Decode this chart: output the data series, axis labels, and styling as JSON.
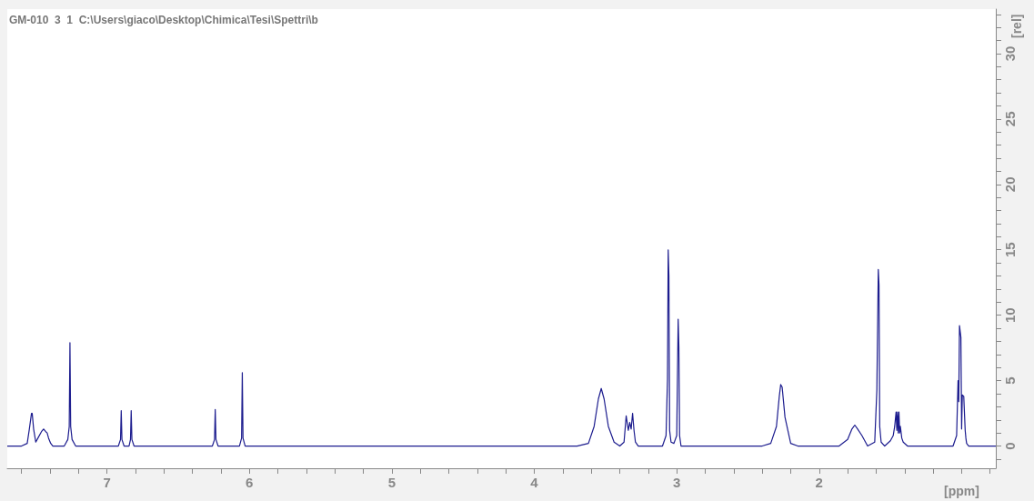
{
  "chart_data": {
    "type": "line",
    "title": "GM-010  3  1  C:\\Users\\giaco\\Desktop\\Chimica\\Tesi\\Spettri\\b",
    "xlabel": "[ppm]",
    "ylabel": "[rel]",
    "xlim": [
      7.7,
      0.76
    ],
    "xticks": [
      7,
      6,
      5,
      4,
      3,
      2,
      {
        "value": 1,
        "label": null
      }
    ],
    "ylim": [
      -1.7,
      33.4
    ],
    "yticks": [
      0,
      5,
      10,
      15,
      20,
      25,
      30
    ],
    "grid": false,
    "marker": "none",
    "line_style": "solid",
    "series": [
      {
        "color": "#1c1c8e",
        "x": [
          7.7,
          7.6,
          7.56,
          7.545,
          7.53,
          7.525,
          7.515,
          7.5,
          7.485,
          7.46,
          7.445,
          7.43,
          7.42,
          7.41,
          7.395,
          7.38,
          7.3,
          7.275,
          7.265,
          7.26,
          7.255,
          7.245,
          7.22,
          6.92,
          6.905,
          6.9,
          6.895,
          6.88,
          6.845,
          6.835,
          6.83,
          6.825,
          6.81,
          6.26,
          6.245,
          6.24,
          6.235,
          6.22,
          6.07,
          6.055,
          6.05,
          6.045,
          6.03,
          3.7,
          3.62,
          3.58,
          3.55,
          3.53,
          3.51,
          3.48,
          3.44,
          3.4,
          3.37,
          3.355,
          3.34,
          3.33,
          3.32,
          3.31,
          3.3,
          3.29,
          3.27,
          3.1,
          3.075,
          3.065,
          3.06,
          3.055,
          3.05,
          3.04,
          3.02,
          3.0,
          2.99,
          2.985,
          2.98,
          2.97,
          2.94,
          2.4,
          2.34,
          2.3,
          2.28,
          2.27,
          2.26,
          2.24,
          2.2,
          2.15,
          1.86,
          1.8,
          1.77,
          1.75,
          1.73,
          1.7,
          1.66,
          1.61,
          1.595,
          1.585,
          1.58,
          1.575,
          1.565,
          1.54,
          1.5,
          1.48,
          1.47,
          1.46,
          1.455,
          1.45,
          1.445,
          1.44,
          1.435,
          1.43,
          1.42,
          1.41,
          1.38,
          1.06,
          1.035,
          1.025,
          1.02,
          1.015,
          1.005,
          1.0,
          0.995,
          0.985,
          0.975,
          0.97,
          0.965,
          0.95,
          0.76
        ],
        "values": [
          0,
          0,
          0.2,
          1.3,
          2.5,
          2.5,
          1.3,
          0.3,
          0.6,
          1.1,
          1.3,
          1.1,
          1.0,
          0.6,
          0.2,
          0,
          0,
          0.5,
          1.5,
          7.9,
          1.5,
          0.5,
          0,
          0,
          0.5,
          2.7,
          0.5,
          0,
          0,
          0.5,
          2.7,
          0.5,
          0,
          0,
          0.5,
          2.8,
          0.5,
          0,
          0,
          0.6,
          5.6,
          0.6,
          0,
          0,
          0.2,
          1.5,
          3.6,
          4.4,
          3.6,
          1.5,
          0.3,
          0,
          0.3,
          2.3,
          1.2,
          1.8,
          1.3,
          2.5,
          1.2,
          0.3,
          0,
          0,
          0.8,
          5.1,
          15.0,
          13.0,
          1.2,
          0.3,
          0.2,
          0.8,
          9.7,
          7.6,
          0.8,
          0,
          0,
          0,
          0.2,
          1.5,
          3.8,
          4.7,
          4.5,
          2.2,
          0.2,
          0,
          0,
          0.5,
          1.3,
          1.6,
          1.3,
          0.8,
          0,
          0.3,
          4.3,
          13.5,
          12.3,
          1.5,
          0.3,
          0,
          0.4,
          0.8,
          1.5,
          2.6,
          1.2,
          2.6,
          1.0,
          2.6,
          1.0,
          1.5,
          0.6,
          0.3,
          0,
          0,
          0.8,
          5.0,
          3.4,
          9.2,
          8.3,
          1.3,
          3.9,
          3.8,
          1.2,
          0.6,
          0.2,
          0,
          0
        ]
      }
    ]
  }
}
